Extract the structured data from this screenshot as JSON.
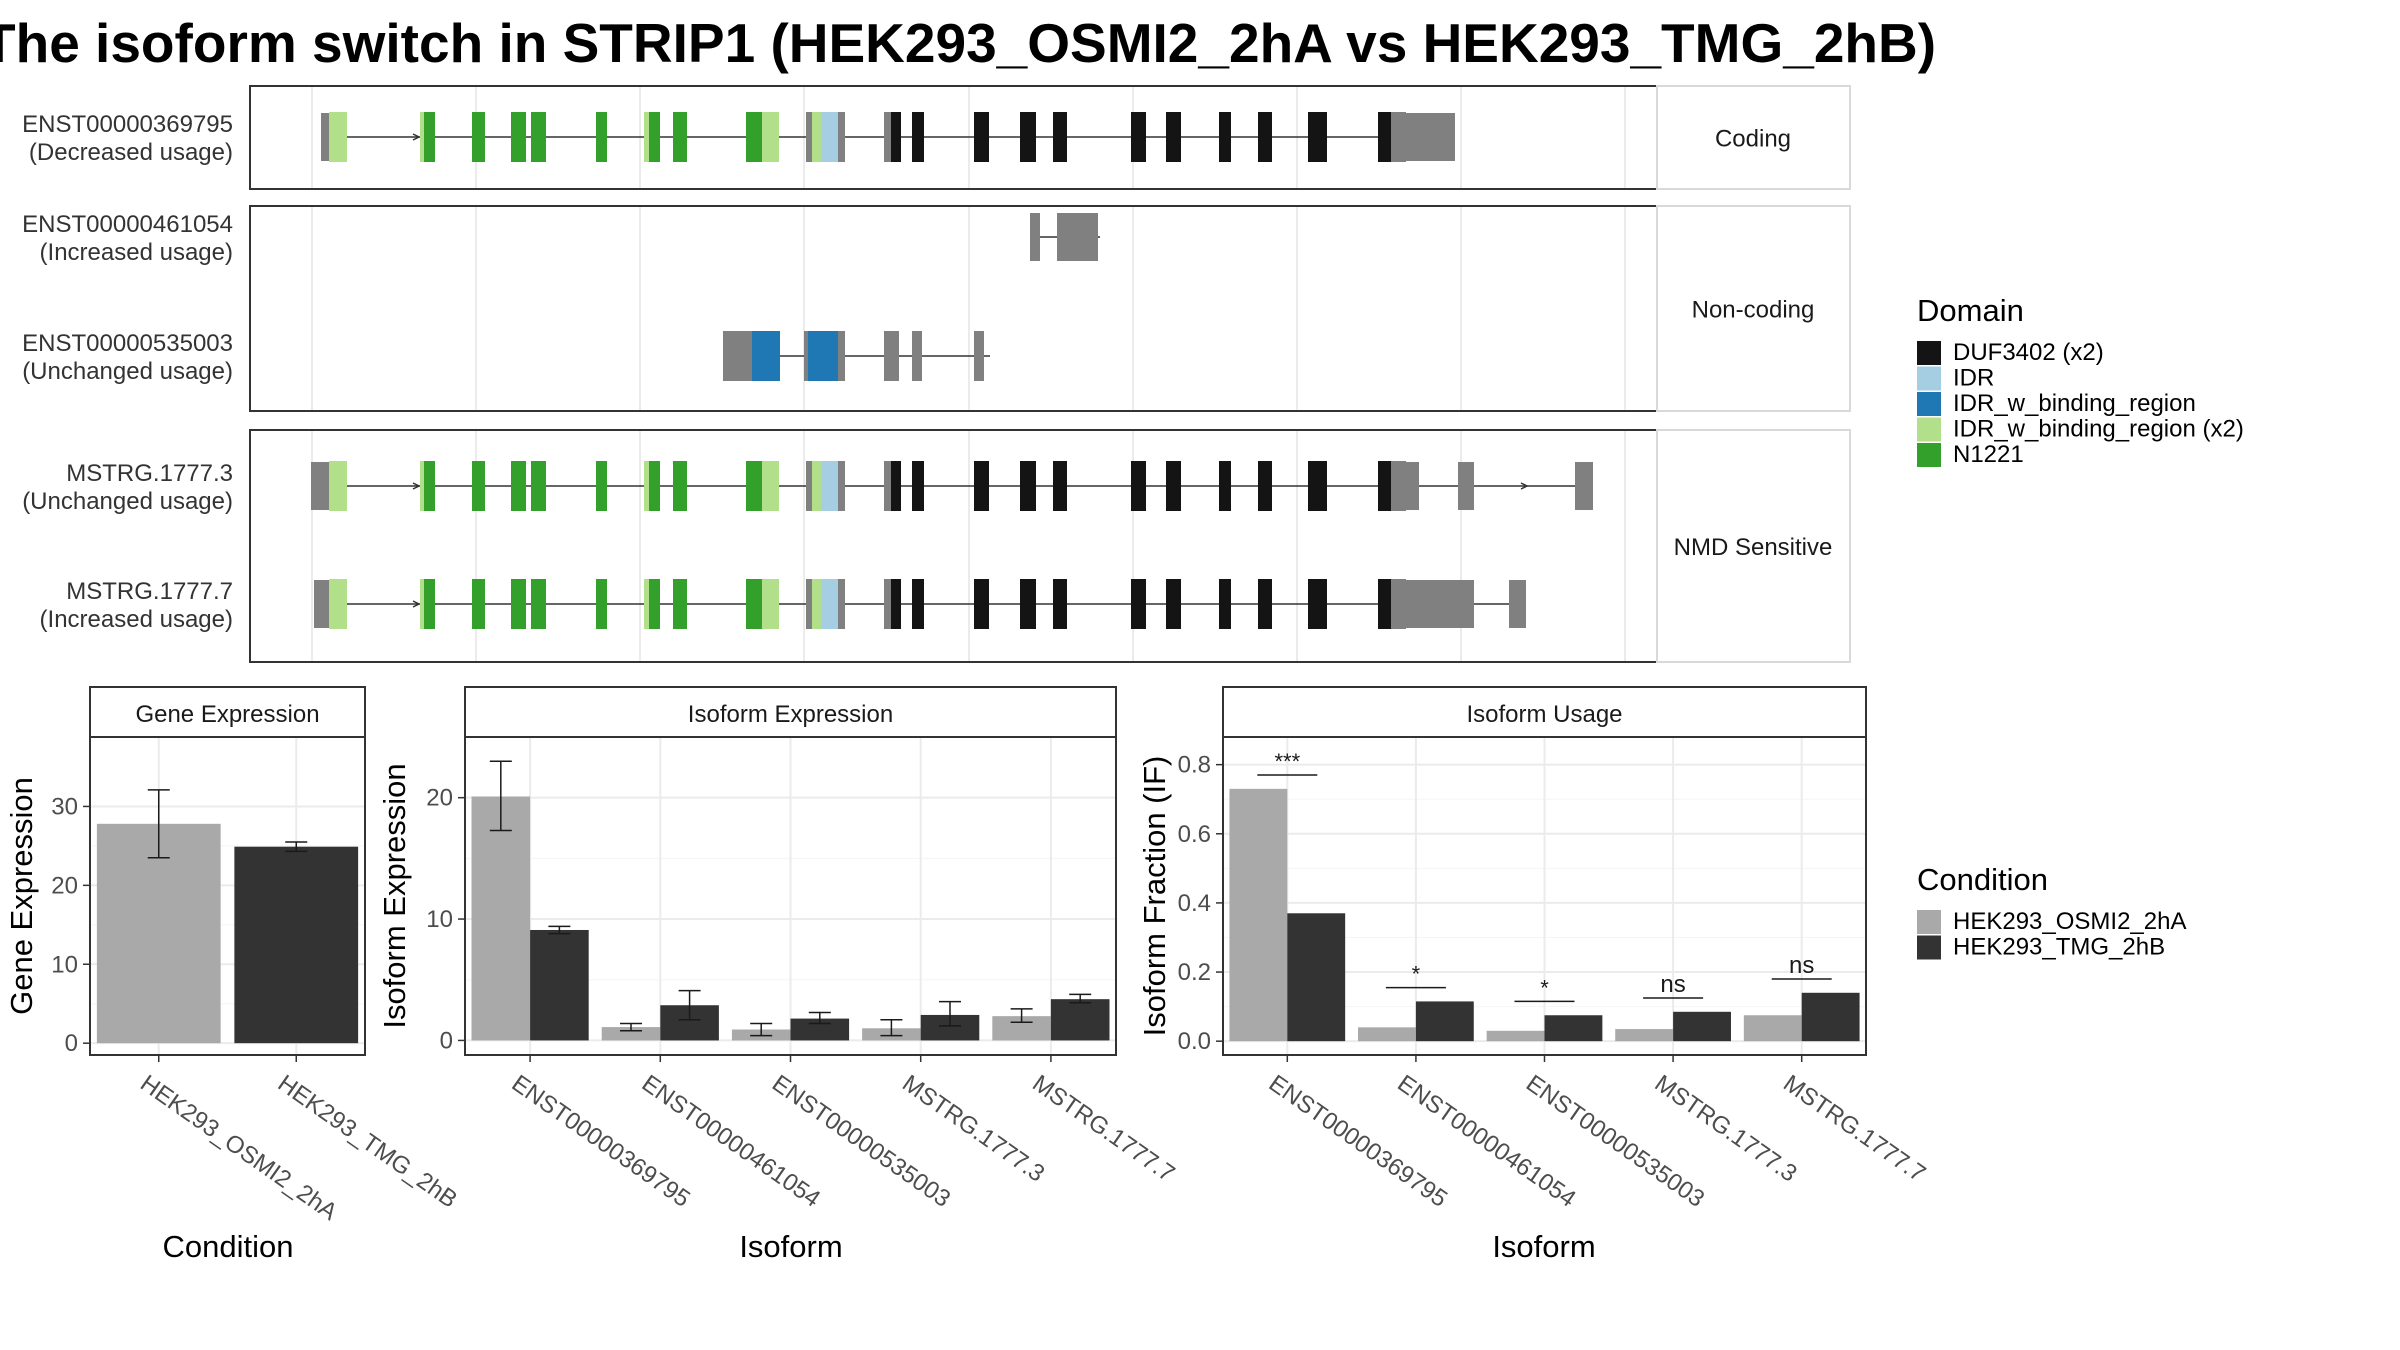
{
  "title": "The isoform switch in STRIP1 (HEK293_OSMI2_2hA vs HEK293_TMG_2hB)",
  "colors": {
    "utr": "#808080",
    "duf": "#141414",
    "idr": "#a6cee3",
    "idr_bind": "#1f78b4",
    "idr_bind_x2": "#b2df8a",
    "n1221": "#33a02c",
    "cond_a": "#a9a9a9",
    "cond_b": "#333333"
  },
  "legend_domain": {
    "title": "Domain",
    "items": [
      {
        "label": "DUF3402 (x2)",
        "color": "#141414"
      },
      {
        "label": "IDR",
        "color": "#a6cee3"
      },
      {
        "label": "IDR_w_binding_region",
        "color": "#1f78b4"
      },
      {
        "label": "IDR_w_binding_region (x2)",
        "color": "#b2df8a"
      },
      {
        "label": "N1221",
        "color": "#33a02c"
      }
    ]
  },
  "legend_condition": {
    "title": "Condition",
    "items": [
      {
        "label": "HEK293_OSMI2_2hA",
        "color": "#a9a9a9"
      },
      {
        "label": "HEK293_TMG_2hB",
        "color": "#333333"
      }
    ]
  },
  "structure_panels": [
    {
      "label": "Coding"
    },
    {
      "label": "Non-coding"
    },
    {
      "label": "NMD Sensitive"
    }
  ],
  "transcripts": [
    {
      "id": "ENST00000369795",
      "usage": "(Decreased usage)"
    },
    {
      "id": "ENST00000461054",
      "usage": "(Increased usage)"
    },
    {
      "id": "ENST00000535003",
      "usage": "(Unchanged usage)"
    },
    {
      "id": "MSTRG.1777.3",
      "usage": "(Unchanged usage)"
    },
    {
      "id": "MSTRG.1777.7",
      "usage": "(Increased usage)"
    }
  ],
  "chart_data": [
    {
      "type": "bar",
      "title": "Gene Expression",
      "xlabel": "Condition",
      "ylabel": "Gene Expression",
      "categories": [
        "HEK293_OSMI2_2hA",
        "HEK293_TMG_2hB"
      ],
      "values": [
        27.8,
        24.9
      ],
      "errors": [
        [
          23.5,
          32.1
        ],
        [
          24.3,
          25.5
        ]
      ],
      "ylim": [
        -1.5,
        38.8
      ],
      "yticks": [
        0,
        10,
        20,
        30
      ],
      "grid": true
    },
    {
      "type": "bar",
      "title": "Isoform Expression",
      "xlabel": "Isoform",
      "ylabel": "Isoform Expression",
      "categories": [
        "ENST00000369795",
        "ENST00000461054",
        "ENST00000535003",
        "MSTRG.1777.3",
        "MSTRG.1777.7"
      ],
      "series": [
        {
          "name": "HEK293_OSMI2_2hA",
          "values": [
            20.1,
            1.1,
            0.9,
            1.0,
            2.0
          ],
          "errors": [
            [
              17.3,
              23.0
            ],
            [
              0.8,
              1.4
            ],
            [
              0.4,
              1.4
            ],
            [
              0.4,
              1.7
            ],
            [
              1.5,
              2.6
            ]
          ]
        },
        {
          "name": "HEK293_TMG_2hB",
          "values": [
            9.1,
            2.9,
            1.8,
            2.1,
            3.4
          ],
          "errors": [
            [
              8.8,
              9.4
            ],
            [
              1.7,
              4.1
            ],
            [
              1.4,
              2.3
            ],
            [
              1.2,
              3.2
            ],
            [
              3.1,
              3.8
            ]
          ]
        }
      ],
      "ylim": [
        -1.2,
        25.0
      ],
      "yticks": [
        0,
        10,
        20
      ],
      "grid": true
    },
    {
      "type": "bar",
      "title": "Isoform Usage",
      "xlabel": "Isoform",
      "ylabel": "Isoform Fraction (IF)",
      "categories": [
        "ENST00000369795",
        "ENST00000461054",
        "ENST00000535003",
        "MSTRG.1777.3",
        "MSTRG.1777.7"
      ],
      "series": [
        {
          "name": "HEK293_OSMI2_2hA",
          "values": [
            0.73,
            0.04,
            0.03,
            0.035,
            0.075
          ]
        },
        {
          "name": "HEK293_TMG_2hB",
          "values": [
            0.37,
            0.115,
            0.075,
            0.085,
            0.14
          ]
        }
      ],
      "annotations": [
        {
          "category": "ENST00000369795",
          "label": "***",
          "y": 0.77
        },
        {
          "category": "ENST00000461054",
          "label": "*",
          "y": 0.155
        },
        {
          "category": "ENST00000535003",
          "label": "*",
          "y": 0.115
        },
        {
          "category": "MSTRG.1777.3",
          "label": "ns",
          "y": 0.125
        },
        {
          "category": "MSTRG.1777.7",
          "label": "ns",
          "y": 0.18
        }
      ],
      "ylim": [
        -0.04,
        0.88
      ],
      "yticks": [
        0.0,
        0.2,
        0.4,
        0.6,
        0.8
      ],
      "yticklabels": [
        "0.0",
        "0.2",
        "0.4",
        "0.6",
        "0.8"
      ],
      "grid": true
    }
  ]
}
